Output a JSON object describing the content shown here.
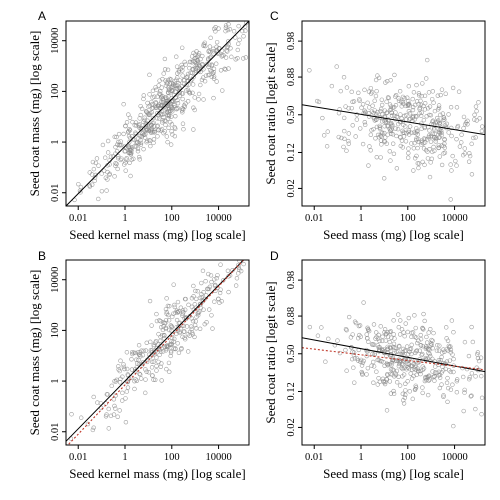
{
  "chart_data": [
    {
      "panel": "A",
      "type": "scatter",
      "xlabel": "Seed kernel mass (mg) [log scale]",
      "ylabel": "Seed coat mass (mg) [log scale]",
      "x_scale": "log",
      "y_scale": "log",
      "x_ticks": [
        "0.01",
        "1",
        "100",
        "10000"
      ],
      "y_ticks": [
        "0.01",
        "1",
        "100",
        "10000"
      ],
      "xlim": [
        0.003,
        200000
      ],
      "ylim": [
        0.003,
        60000
      ],
      "fit_lines": [
        {
          "style": "solid",
          "color": "#000000",
          "x": [
            0.003,
            200000
          ],
          "y": [
            0.003,
            60000
          ]
        }
      ],
      "points_description": "dense cloud of gray open circles following the fit line"
    },
    {
      "panel": "C",
      "type": "scatter",
      "xlabel": "Seed mass (mg) [log scale]",
      "ylabel": "Seed coat ratio [logit scale]",
      "x_scale": "log",
      "y_scale": "logit",
      "x_ticks": [
        "0.01",
        "1",
        "100",
        "10000"
      ],
      "y_ticks": [
        "0.02",
        "0.12",
        "0.50",
        "0.88",
        "0.98"
      ],
      "xlim": [
        0.003,
        200000
      ],
      "ylim": [
        0.008,
        0.993
      ],
      "fit_lines": [
        {
          "style": "solid",
          "color": "#000000",
          "x": [
            0.003,
            200000
          ],
          "y": [
            0.63,
            0.26
          ]
        }
      ],
      "points_description": "broad cloud of gray open circles with a shallow negative trend"
    },
    {
      "panel": "B",
      "type": "scatter",
      "xlabel": "Seed kernel mass (mg) [log scale]",
      "ylabel": "Seed coat mass (mg) [log scale]",
      "x_scale": "log",
      "y_scale": "log",
      "x_ticks": [
        "0.01",
        "1",
        "100",
        "10000"
      ],
      "y_ticks": [
        "0.01",
        "1",
        "100",
        "10000"
      ],
      "xlim": [
        0.003,
        200000
      ],
      "ylim": [
        0.003,
        60000
      ],
      "fit_lines": [
        {
          "style": "solid",
          "color": "#000000",
          "x": [
            0.003,
            200000
          ],
          "y": [
            0.0042,
            100000
          ]
        },
        {
          "style": "dotted",
          "color": "#c0392b",
          "x": [
            0.003,
            200000
          ],
          "y": [
            0.0025,
            100000
          ]
        }
      ],
      "points_description": "gray open circles along a steep positive line"
    },
    {
      "panel": "D",
      "type": "scatter",
      "xlabel": "Seed mass (mg) [log scale]",
      "ylabel": "Seed coat ratio [logit scale]",
      "x_scale": "log",
      "y_scale": "logit",
      "x_ticks": [
        "0.01",
        "1",
        "100",
        "10000"
      ],
      "y_ticks": [
        "0.02",
        "0.12",
        "0.50",
        "0.88",
        "0.98"
      ],
      "xlim": [
        0.003,
        200000
      ],
      "ylim": [
        0.008,
        0.993
      ],
      "fit_lines": [
        {
          "style": "solid",
          "color": "#000000",
          "x": [
            0.003,
            200000
          ],
          "y": [
            0.7,
            0.28
          ]
        },
        {
          "style": "dotted",
          "color": "#c0392b",
          "x": [
            0.003,
            200000
          ],
          "y": [
            0.58,
            0.3
          ]
        }
      ],
      "points_description": "gray open circles scattered around a shallow negative trend"
    }
  ]
}
